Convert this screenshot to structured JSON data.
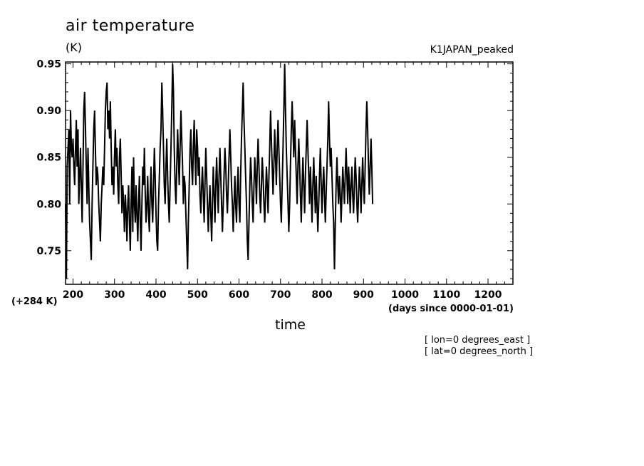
{
  "chart_data": {
    "type": "line",
    "title": "air temperature",
    "units": "(K)",
    "dataset": "K1JAPAN_peaked",
    "xlabel": "time",
    "xunits": "(days since 0000-01-01)",
    "offset_note": "(+284 K)",
    "annotations": [
      "[ lon=0 degrees_east ]",
      "[ lat=0 degrees_north ]"
    ],
    "xlim": [
      182,
      1260
    ],
    "ylim": [
      0.714,
      0.952
    ],
    "xticks": [
      200,
      300,
      400,
      500,
      600,
      700,
      800,
      900,
      1000,
      1100,
      1200
    ],
    "yticks": [
      0.75,
      0.8,
      0.85,
      0.9,
      0.95
    ],
    "ytick_labels": [
      "0.75",
      "0.80",
      "0.85",
      "0.90",
      "0.95"
    ],
    "grid": false,
    "series": [
      {
        "step": 2,
        "x_start": 182,
        "values": [
          0.8,
          0.72,
          0.84,
          0.86,
          0.88,
          0.8,
          0.9,
          0.86,
          0.85,
          0.87,
          0.84,
          0.82,
          0.86,
          0.89,
          0.84,
          0.88,
          0.8,
          0.83,
          0.86,
          0.82,
          0.78,
          0.84,
          0.9,
          0.92,
          0.88,
          0.84,
          0.8,
          0.86,
          0.82,
          0.78,
          0.76,
          0.74,
          0.8,
          0.84,
          0.88,
          0.9,
          0.86,
          0.82,
          0.84,
          0.83,
          0.8,
          0.78,
          0.76,
          0.8,
          0.82,
          0.84,
          0.82,
          0.86,
          0.9,
          0.92,
          0.93,
          0.88,
          0.9,
          0.87,
          0.91,
          0.86,
          0.82,
          0.84,
          0.81,
          0.85,
          0.88,
          0.84,
          0.86,
          0.82,
          0.8,
          0.85,
          0.87,
          0.83,
          0.79,
          0.82,
          0.8,
          0.77,
          0.81,
          0.79,
          0.76,
          0.8,
          0.82,
          0.78,
          0.75,
          0.8,
          0.84,
          0.77,
          0.85,
          0.8,
          0.78,
          0.82,
          0.79,
          0.76,
          0.8,
          0.83,
          0.78,
          0.75,
          0.8,
          0.84,
          0.82,
          0.86,
          0.81,
          0.78,
          0.8,
          0.83,
          0.79,
          0.77,
          0.81,
          0.84,
          0.8,
          0.78,
          0.82,
          0.86,
          0.83,
          0.79,
          0.76,
          0.75,
          0.8,
          0.83,
          0.86,
          0.88,
          0.93,
          0.9,
          0.86,
          0.82,
          0.8,
          0.84,
          0.87,
          0.83,
          0.8,
          0.78,
          0.82,
          0.86,
          0.9,
          0.95,
          0.92,
          0.86,
          0.82,
          0.8,
          0.84,
          0.88,
          0.85,
          0.82,
          0.86,
          0.9,
          0.87,
          0.84,
          0.8,
          0.83,
          0.82,
          0.79,
          0.76,
          0.73,
          0.78,
          0.82,
          0.86,
          0.88,
          0.84,
          0.82,
          0.86,
          0.89,
          0.85,
          0.82,
          0.88,
          0.86,
          0.83,
          0.85,
          0.81,
          0.79,
          0.82,
          0.84,
          0.81,
          0.78,
          0.82,
          0.86,
          0.83,
          0.8,
          0.77,
          0.8,
          0.82,
          0.79,
          0.76,
          0.8,
          0.84,
          0.81,
          0.78,
          0.82,
          0.85,
          0.82,
          0.79,
          0.83,
          0.86,
          0.83,
          0.8,
          0.77,
          0.8,
          0.83,
          0.86,
          0.84,
          0.81,
          0.79,
          0.82,
          0.85,
          0.88,
          0.85,
          0.82,
          0.8,
          0.77,
          0.8,
          0.83,
          0.8,
          0.78,
          0.82,
          0.84,
          0.8,
          0.78,
          0.83,
          0.87,
          0.9,
          0.93,
          0.89,
          0.86,
          0.83,
          0.8,
          0.76,
          0.74,
          0.78,
          0.82,
          0.85,
          0.83,
          0.8,
          0.78,
          0.82,
          0.85,
          0.83,
          0.8,
          0.84,
          0.87,
          0.84,
          0.81,
          0.79,
          0.82,
          0.85,
          0.83,
          0.8,
          0.78,
          0.81,
          0.84,
          0.82,
          0.79,
          0.83,
          0.86,
          0.9,
          0.87,
          0.84,
          0.81,
          0.84,
          0.88,
          0.85,
          0.82,
          0.86,
          0.89,
          0.86,
          0.83,
          0.8,
          0.78,
          0.82,
          0.86,
          0.9,
          0.95,
          0.9,
          0.86,
          0.83,
          0.8,
          0.77,
          0.8,
          0.84,
          0.88,
          0.91,
          0.88,
          0.85,
          0.89,
          0.86,
          0.83,
          0.8,
          0.84,
          0.87,
          0.84,
          0.81,
          0.78,
          0.82,
          0.85,
          0.82,
          0.79,
          0.83,
          0.86,
          0.89,
          0.86,
          0.83,
          0.8,
          0.84,
          0.81,
          0.78,
          0.82,
          0.85,
          0.82,
          0.79,
          0.83,
          0.8,
          0.77,
          0.8,
          0.83,
          0.86,
          0.82,
          0.79,
          0.82,
          0.84,
          0.81,
          0.78,
          0.81,
          0.84,
          0.87,
          0.91,
          0.87,
          0.84,
          0.86,
          0.83,
          0.8,
          0.78,
          0.73,
          0.78,
          0.82,
          0.85,
          0.82,
          0.8,
          0.83,
          0.81,
          0.78,
          0.81,
          0.84,
          0.82,
          0.8,
          0.83,
          0.86,
          0.83,
          0.8,
          0.84,
          0.82,
          0.79,
          0.82,
          0.84,
          0.81,
          0.79,
          0.82,
          0.85,
          0.83,
          0.8,
          0.78,
          0.81,
          0.84,
          0.82,
          0.79,
          0.82,
          0.85,
          0.82,
          0.8,
          0.84,
          0.88,
          0.91,
          0.88,
          0.84,
          0.81,
          0.84,
          0.87,
          0.84,
          0.8
        ]
      }
    ]
  }
}
